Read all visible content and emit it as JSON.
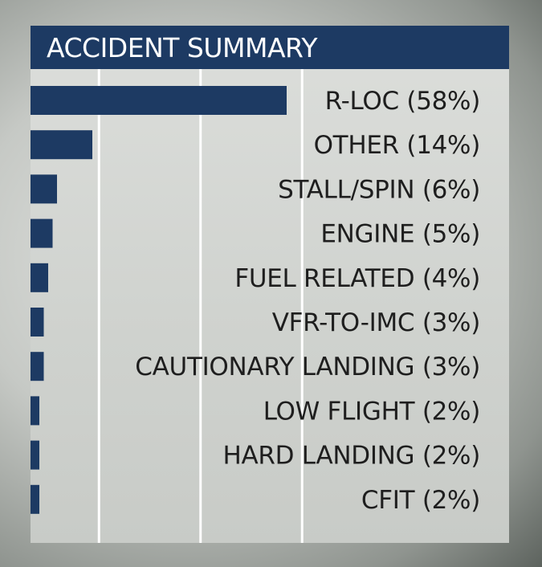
{
  "chart_data": {
    "type": "bar",
    "orientation": "horizontal",
    "title": "ACCIDENT SUMMARY",
    "categories": [
      "R-LOC (58%)",
      "OTHER (14%)",
      "STALL/SPIN (6%)",
      "ENGINE (5%)",
      "FUEL RELATED (4%)",
      "VFR-TO-IMC (3%)",
      "CAUTIONARY LANDING (3%)",
      "LOW FLIGHT (2%)",
      "HARD LANDING (2%)",
      "CFIT (2%)"
    ],
    "values": [
      58,
      14,
      6,
      5,
      4,
      3,
      3,
      2,
      2,
      2
    ],
    "value_unit": "%",
    "xlim": [
      0,
      100
    ],
    "grid": true,
    "colors": {
      "bar": "#1d3a63",
      "title_bar": "#1d3a63",
      "title_text": "#ffffff",
      "label_text": "#1e1e1e",
      "grid": "#ffffff"
    }
  }
}
